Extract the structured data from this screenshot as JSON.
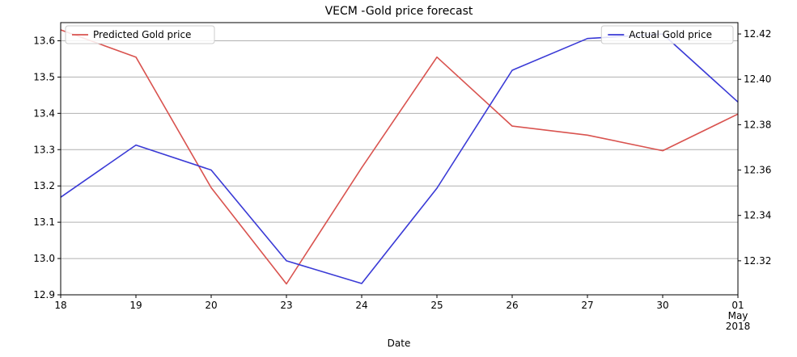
{
  "chart_data": {
    "type": "line",
    "title": "VECM -Gold price forecast",
    "xlabel": "Date",
    "ylabel_left": "",
    "ylabel_right": "",
    "categories": [
      "18",
      "19",
      "20",
      "23",
      "24",
      "25",
      "26",
      "27",
      "30",
      "01"
    ],
    "x_sublabels": [
      {
        "category": "01",
        "lines": [
          "May",
          "2018"
        ]
      }
    ],
    "ylim_left": [
      12.9,
      13.65
    ],
    "ylim_right": [
      12.305,
      12.425
    ],
    "yticks_left": [
      12.9,
      13.0,
      13.1,
      13.2,
      13.3,
      13.4,
      13.5,
      13.6
    ],
    "yticks_left_labels": [
      "12.9",
      "13.0",
      "13.1",
      "13.2",
      "13.3",
      "13.4",
      "13.5",
      "13.6"
    ],
    "yticks_right": [
      12.32,
      12.34,
      12.36,
      12.38,
      12.4,
      12.42
    ],
    "yticks_right_labels": [
      "12.32",
      "12.34",
      "12.36",
      "12.38",
      "12.40",
      "12.42"
    ],
    "grid": "horizontal (left axis)",
    "series": [
      {
        "name": "Predicted Gold price",
        "axis": "left",
        "color": "#d9534f",
        "values": [
          13.63,
          13.555,
          13.195,
          12.93,
          13.25,
          13.555,
          13.365,
          13.34,
          13.297,
          13.398
        ]
      },
      {
        "name": "Actual Gold price",
        "axis": "right",
        "color": "#3a3ad6",
        "values": [
          12.348,
          12.371,
          12.36,
          12.32,
          12.31,
          12.352,
          12.404,
          12.418,
          12.42,
          12.39
        ]
      }
    ],
    "legends": [
      {
        "series": "Predicted Gold price",
        "placement": "top-left"
      },
      {
        "series": "Actual Gold price",
        "placement": "top-right"
      }
    ]
  }
}
